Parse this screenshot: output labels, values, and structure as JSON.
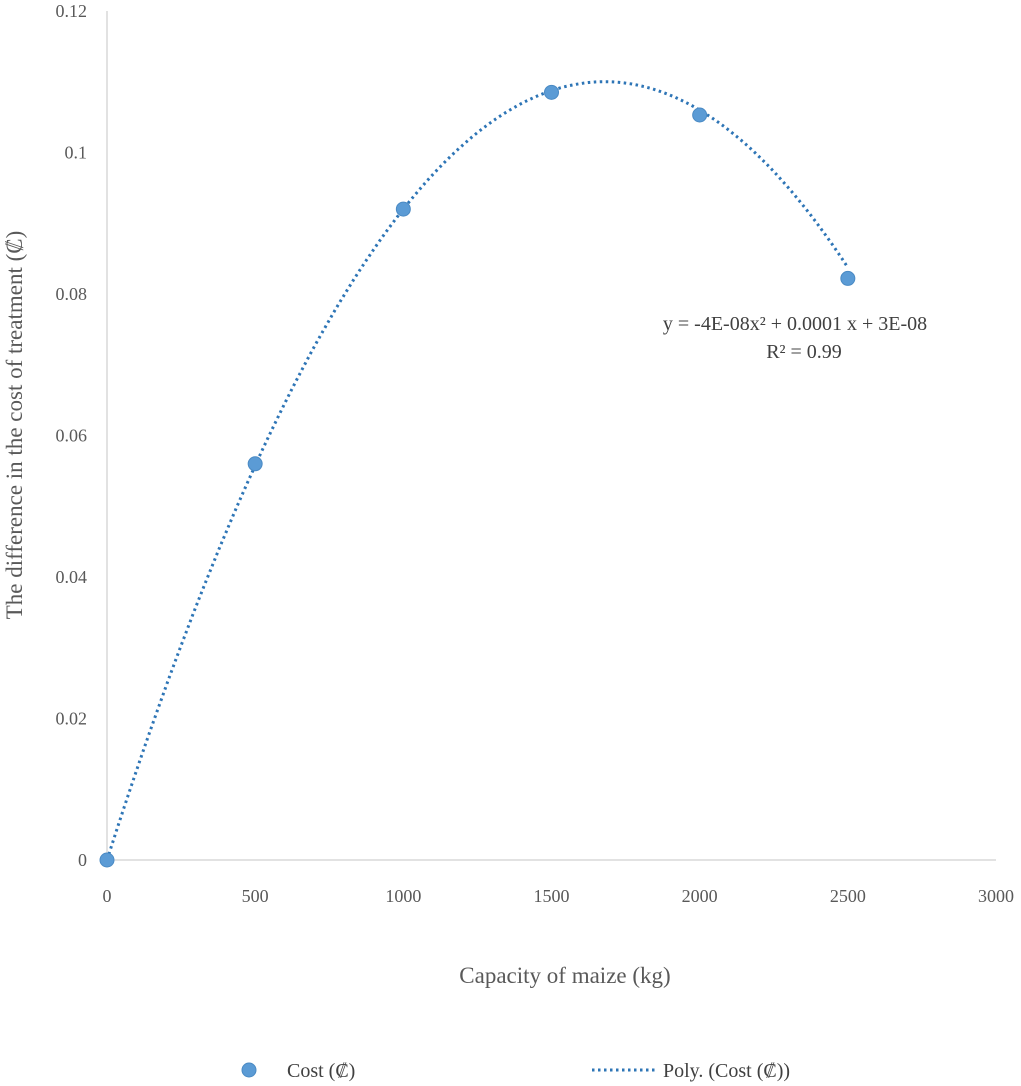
{
  "chart_data": {
    "type": "scatter",
    "xlabel": "Capacity of maize (kg)",
    "ylabel": "The difference in the cost of treatment  (₡)",
    "xlim": [
      0,
      3000
    ],
    "ylim": [
      0,
      0.12
    ],
    "xticks": [
      0,
      500,
      1000,
      1500,
      2000,
      2500,
      3000
    ],
    "xtick_labels": [
      "0",
      "500",
      "1000",
      "1500",
      "2000",
      "2500",
      "3000"
    ],
    "yticks": [
      0,
      0.02,
      0.04,
      0.06,
      0.08,
      0.1,
      0.12
    ],
    "ytick_labels": [
      "0",
      "0.02",
      "0.04",
      "0.06",
      "0.08",
      "0.1",
      "0.12"
    ],
    "grid": false,
    "series": [
      {
        "name": "Cost (₡)",
        "x": [
          0,
          500,
          1000,
          1500,
          2000,
          2500
        ],
        "y": [
          0.0,
          0.056,
          0.092,
          0.1085,
          0.1053,
          0.0822
        ],
        "color": "#5b9bd5"
      }
    ],
    "trendline": {
      "name": "Poly. (Cost (₡))",
      "type": "polynomial",
      "order": 2,
      "coefficients": [
        -3.9e-08,
        0.000131,
        0.0
      ],
      "x_range": [
        0,
        2500
      ],
      "color": "#2e75b6",
      "equation_line1": "y = -4E-08x² + 0.0001 x + 3E-08",
      "equation_line2": "R² = 0.99"
    },
    "legend": {
      "placement": "bottom",
      "marker_label": "Cost (₡)",
      "line_label": "Poly. (Cost (₡))"
    }
  }
}
